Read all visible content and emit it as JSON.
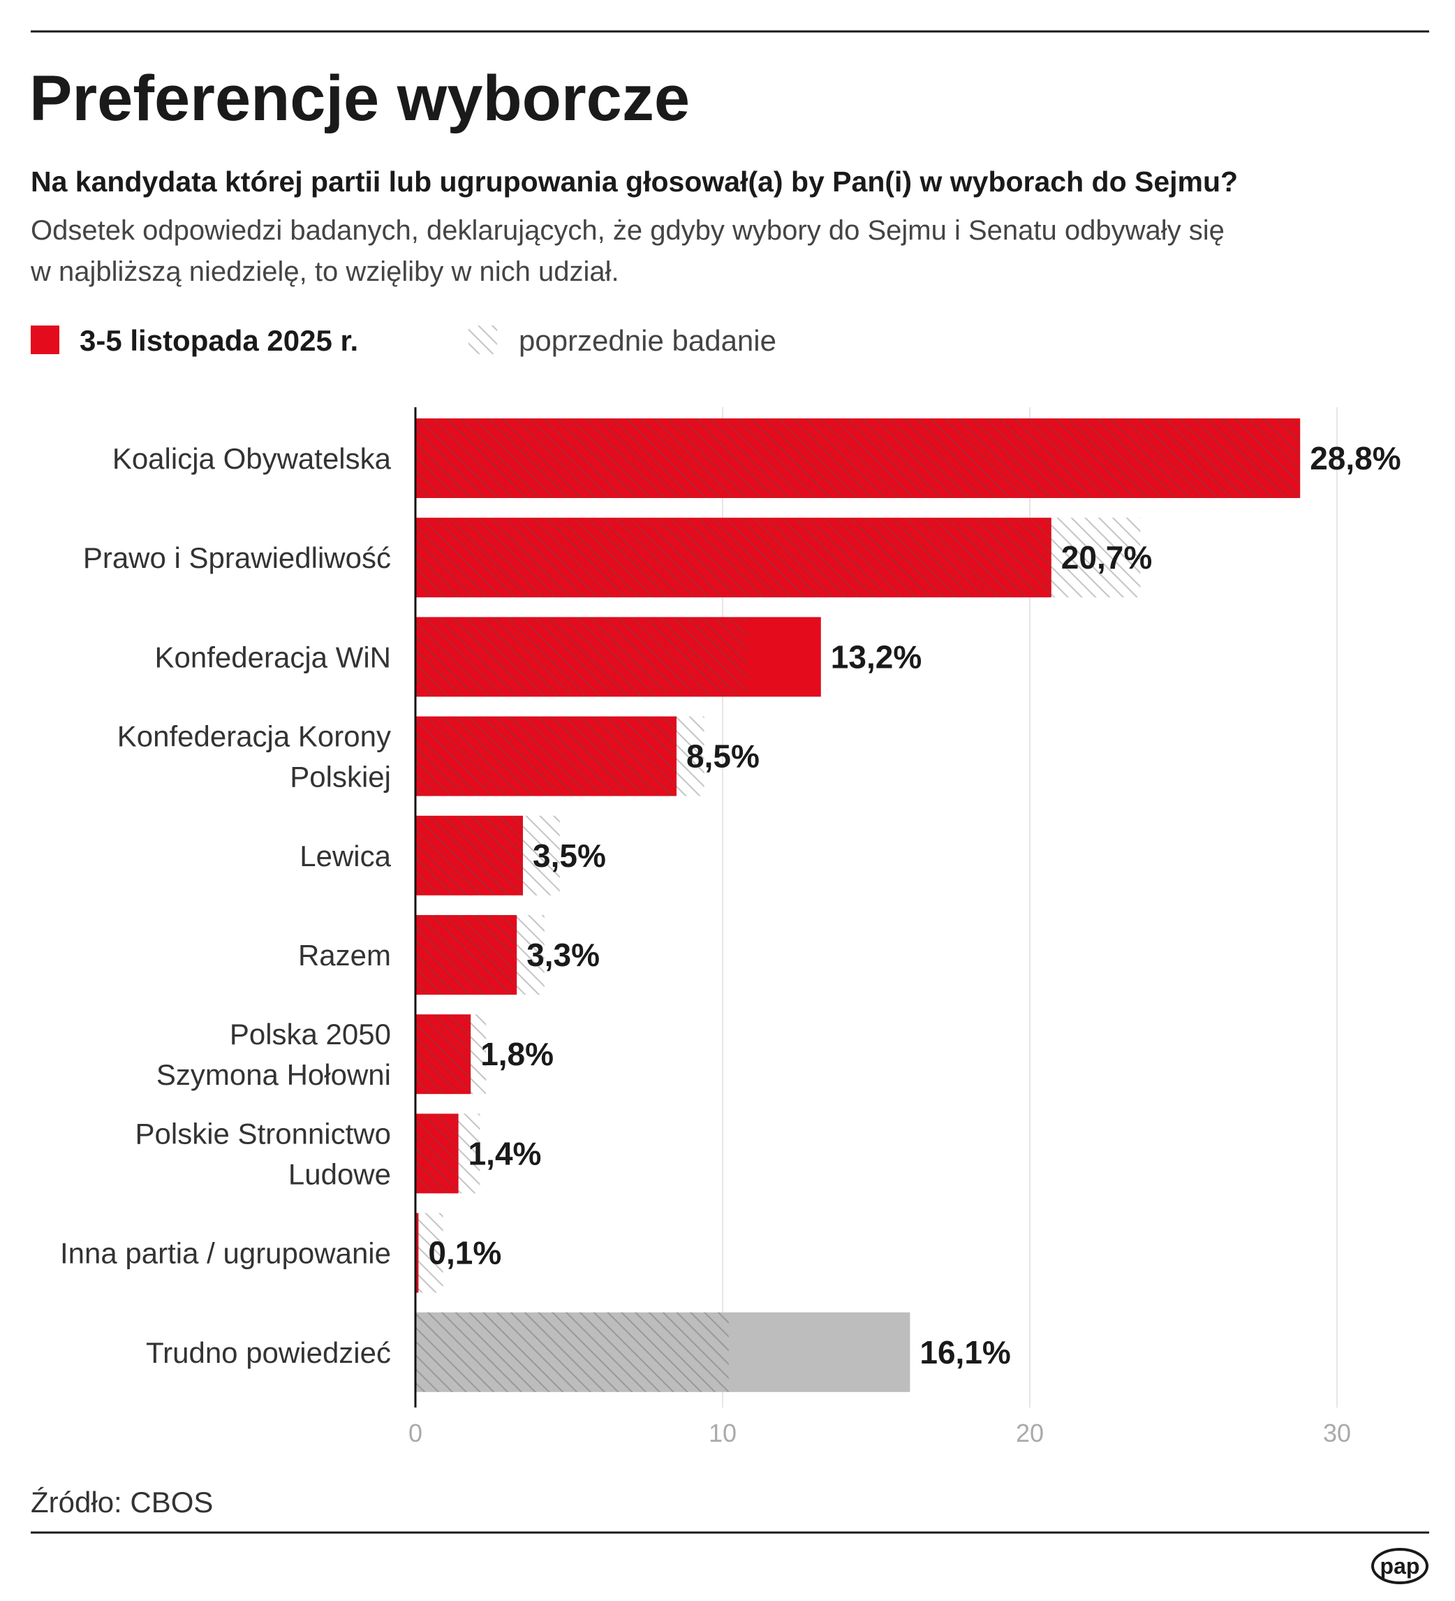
{
  "chart_data": {
    "type": "bar",
    "orientation": "horizontal",
    "title": "Preferencje wyborcze",
    "subtitle": "Na kandydata której partii lub ugrupowania głosował(a) by Pan(i) w wyborach do Sejmu?",
    "description": [
      "Odsetek odpowiedzi badanych, deklarujących, że gdyby wybory do Sejmu i Senatu odbywały się",
      "w najbliższą niedzielę, to wzięliby w nich udział."
    ],
    "categories": [
      [
        "Koalicja Obywatelska"
      ],
      [
        "Prawo i Sprawiedliwość"
      ],
      [
        "Konfederacja WiN"
      ],
      [
        "Konfederacja Korony",
        "Polskiej"
      ],
      [
        "Lewica"
      ],
      [
        "Razem"
      ],
      [
        "Polska 2050",
        "Szymona Hołowni"
      ],
      [
        "Polskie Stronnictwo",
        "Ludowe"
      ],
      [
        "Inna partia / ugrupowanie"
      ],
      [
        "Trudno powiedzieć"
      ]
    ],
    "series": [
      {
        "name": "3-5 listopada 2025 r.",
        "color": "#e30b1c",
        "colors": [
          "#e30b1c",
          "#e30b1c",
          "#e30b1c",
          "#e30b1c",
          "#e30b1c",
          "#e30b1c",
          "#e30b1c",
          "#e30b1c",
          "#e30b1c",
          "#bdbdbd"
        ],
        "values": [
          28.8,
          20.7,
          13.2,
          8.5,
          3.5,
          3.3,
          1.8,
          1.4,
          0.1,
          16.1
        ],
        "value_labels": [
          "28,8%",
          "20,7%",
          "13,2%",
          "8,5%",
          "3,5%",
          "3,3%",
          "1,8%",
          "1,4%",
          "0,1%",
          "16,1%"
        ]
      },
      {
        "name": "poprzednie badanie",
        "color": "#555555",
        "pattern": "hatched",
        "values": [
          28.8,
          23.6,
          10.8,
          9.4,
          4.7,
          4.2,
          2.3,
          2.1,
          0.9,
          10.2
        ]
      }
    ],
    "xlim": [
      0,
      33
    ],
    "xticks": [
      0,
      10,
      20,
      30
    ],
    "grid": true,
    "source": "Źródło: CBOS",
    "logo": "pap"
  }
}
